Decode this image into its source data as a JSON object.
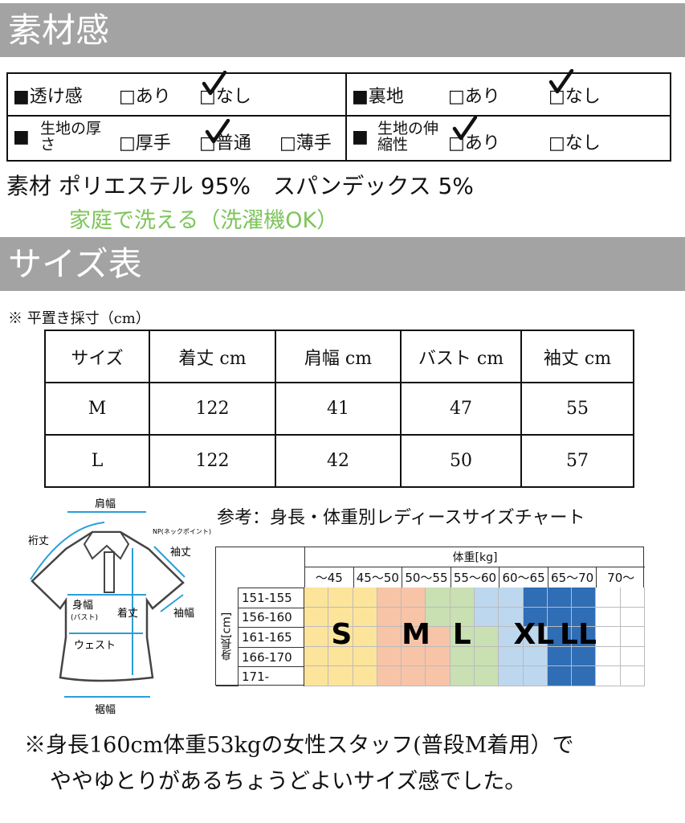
{
  "section1": {
    "title": "素材感"
  },
  "features": [
    {
      "label": "■透け感",
      "options": [
        "□あり",
        "□なし"
      ],
      "checked": 1
    },
    {
      "label": "■裏地",
      "options": [
        "□あり",
        "□なし"
      ],
      "checked": 1
    },
    {
      "label_mark": "■",
      "label": "生地の厚さ",
      "options": [
        "□厚手",
        "□普通",
        "□薄手"
      ],
      "checked": 1
    },
    {
      "label_mark": "■",
      "label": "生地の伸縮性",
      "options": [
        "□あり",
        "□なし"
      ],
      "checked": 0
    }
  ],
  "material": "素材 ポリエステル 95%　スパンデックス 5%",
  "wash": "家庭で洗える（洗濯機OK）",
  "wash_color": "#7dc55a",
  "section2": {
    "title": "サイズ表"
  },
  "note": "※ 平置き採寸（cm）",
  "size_table": {
    "headers": [
      "サイズ",
      "着丈 cm",
      "肩幅 cm",
      "バスト cm",
      "袖丈 cm"
    ],
    "rows": [
      [
        "M",
        "122",
        "41",
        "47",
        "55"
      ],
      [
        "L",
        "122",
        "42",
        "50",
        "57"
      ]
    ]
  },
  "diagram": {
    "labels": [
      "肩幅",
      "裄丈",
      "NP(ネックポイント)",
      "袖丈",
      "袖幅",
      "身幅",
      "(バスト)",
      "着丈",
      "ウェスト",
      "裾幅"
    ],
    "arrow_color": "#2a9fd8"
  },
  "chart": {
    "title": "参考：身長・体重別レディースサイズチャート",
    "weight_label": "体重[kg]",
    "height_label": "身長[cm]",
    "weights": [
      "～45",
      "45～50",
      "50～55",
      "55～60",
      "60～65",
      "65～70",
      "70～"
    ],
    "heights": [
      "151-155",
      "156-160",
      "161-165",
      "166-170",
      "171-"
    ],
    "sizes": [
      "S",
      "M",
      "L",
      "XL",
      "LL"
    ],
    "colors": {
      "S": "#fde49b",
      "M": "#f7c4a8",
      "L": "#c9e0b2",
      "XL": "#bdd7ee",
      "LL": "#2f6db5",
      "none": "#ffffff"
    }
  },
  "footer": [
    "※身長160cm体重53kgの女性スタッフ(普段M着用）で",
    "ややゆとりがあるちょうどよいサイズ感でした。"
  ]
}
